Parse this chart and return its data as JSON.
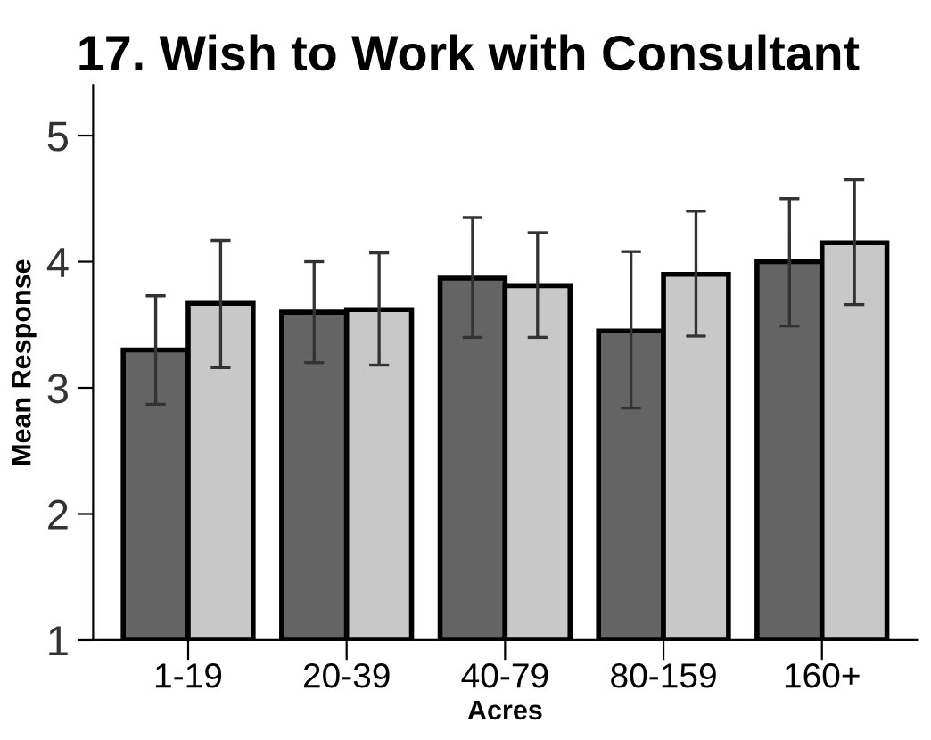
{
  "chart_data": {
    "type": "bar",
    "title": "17. Wish to Work with Consultant",
    "xlabel": "Acres",
    "ylabel": "Mean Response",
    "categories": [
      "1-19",
      "20-39",
      "40-79",
      "80-159",
      "160+"
    ],
    "series": [
      {
        "color": "#646464",
        "values": [
          3.3,
          3.6,
          3.87,
          3.45,
          4.0
        ],
        "errors": [
          [
            2.87,
            3.73
          ],
          [
            3.2,
            4.0
          ],
          [
            3.4,
            4.35
          ],
          [
            2.84,
            4.08
          ],
          [
            3.49,
            4.5
          ]
        ]
      },
      {
        "color": "#c8c8c8",
        "values": [
          3.67,
          3.62,
          3.81,
          3.9,
          4.15
        ],
        "errors": [
          [
            3.16,
            4.17
          ],
          [
            3.18,
            4.07
          ],
          [
            3.4,
            4.23
          ],
          [
            3.41,
            4.4
          ],
          [
            3.66,
            4.65
          ]
        ]
      }
    ],
    "ylim": [
      1,
      5.4
    ],
    "yticks": [
      1,
      2,
      3,
      4,
      5
    ],
    "grid": false,
    "legend": false
  }
}
